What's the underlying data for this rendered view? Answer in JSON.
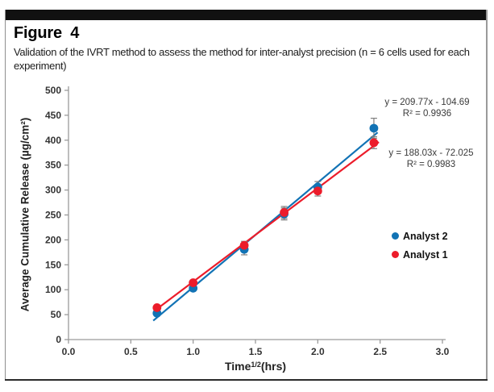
{
  "figure": {
    "label": "Figure 4",
    "caption": "Validation of the IVRT method to assess the method for inter-analyst precision (n = 6 cells used for each experiment)"
  },
  "chart_data": {
    "type": "scatter",
    "x": [
      0.71,
      1.0,
      1.41,
      1.73,
      2.0,
      2.45
    ],
    "series": [
      {
        "name": "Analyst 2",
        "color": "#1273b5",
        "values": [
          53,
          103,
          181,
          252,
          306,
          424
        ],
        "errors": [
          4,
          5,
          11,
          12,
          11,
          20
        ],
        "trendline": {
          "slope": 209.77,
          "intercept": -104.69,
          "range": [
            0.68,
            2.48
          ]
        },
        "equation": "y = 209.77x - 104.69",
        "r2": "R² = 0.9936"
      },
      {
        "name": "Analyst 1",
        "color": "#ec1c2a",
        "values": [
          64,
          114,
          189,
          255,
          298,
          395
        ],
        "errors": [
          4,
          5,
          8,
          12,
          10,
          12
        ],
        "trendline": {
          "slope": 188.03,
          "intercept": -72.025,
          "range": [
            0.71,
            2.49
          ]
        },
        "equation": "y = 188.03x - 72.025",
        "r2": "R² = 0.9983"
      }
    ],
    "xlabel": {
      "base": "Time",
      "sup": "1/2",
      "rest": "(hrs)"
    },
    "ylabel": "Average Cumulative Release (µg/cm²)",
    "xlim": [
      0,
      3
    ],
    "ylim": [
      0,
      500
    ],
    "xticks": [
      "0.0",
      "0.5",
      "1.0",
      "1.5",
      "2.0",
      "2.5",
      "3.0"
    ],
    "yticks": [
      "0",
      "50",
      "100",
      "150",
      "200",
      "250",
      "300",
      "350",
      "400",
      "450",
      "500"
    ],
    "grid": false,
    "legend_position": "right-middle",
    "axis_color": "#9a9a9a",
    "error_bar_color": "#7f7f7f"
  }
}
